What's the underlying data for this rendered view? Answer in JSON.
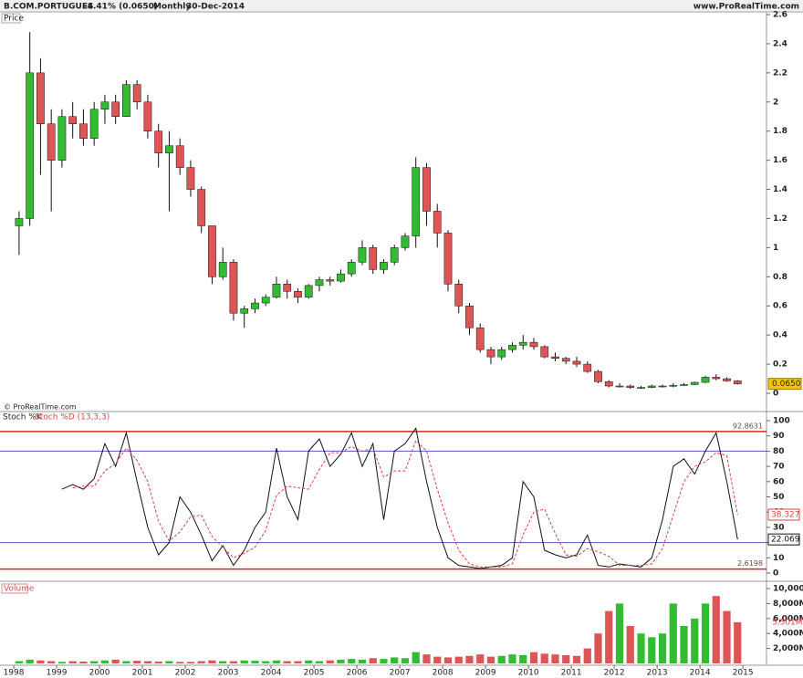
{
  "header": {
    "title": "B.COM.PORTUGUES",
    "change": "-4.41% (0.0650)",
    "period": "Monthly",
    "date": "30-Dec-2014",
    "site": "www.ProRealTime.com",
    "copyright": "© ProRealTime.com"
  },
  "chart_data": [
    {
      "type": "candlestick",
      "label": "Price",
      "x": [
        1998.125,
        1998.375,
        1998.625,
        1998.875,
        1999.125,
        1999.375,
        1999.625,
        1999.875,
        2000.125,
        2000.375,
        2000.625,
        2000.875,
        2001.125,
        2001.375,
        2001.625,
        2001.875,
        2002.125,
        2002.375,
        2002.625,
        2002.875,
        2003.125,
        2003.375,
        2003.625,
        2003.875,
        2004.125,
        2004.375,
        2004.625,
        2004.875,
        2005.125,
        2005.375,
        2005.625,
        2005.875,
        2006.125,
        2006.375,
        2006.625,
        2006.875,
        2007.125,
        2007.375,
        2007.625,
        2007.875,
        2008.125,
        2008.375,
        2008.625,
        2008.875,
        2009.125,
        2009.375,
        2009.625,
        2009.875,
        2010.125,
        2010.375,
        2010.625,
        2010.875,
        2011.125,
        2011.375,
        2011.625,
        2011.875,
        2012.125,
        2012.375,
        2012.625,
        2012.875,
        2013.125,
        2013.375,
        2013.625,
        2013.875,
        2014.125,
        2014.375,
        2014.625,
        2014.875
      ],
      "open": [
        1.15,
        1.2,
        2.2,
        1.85,
        1.6,
        1.9,
        1.85,
        1.75,
        1.95,
        2.0,
        1.9,
        2.12,
        2.0,
        1.8,
        1.65,
        1.7,
        1.55,
        1.4,
        1.15,
        0.8,
        0.9,
        0.55,
        0.58,
        0.62,
        0.66,
        0.75,
        0.7,
        0.66,
        0.74,
        0.78,
        0.77,
        0.82,
        0.9,
        1.0,
        0.85,
        0.9,
        1.0,
        1.08,
        1.55,
        1.25,
        1.1,
        0.75,
        0.6,
        0.45,
        0.3,
        0.25,
        0.3,
        0.33,
        0.35,
        0.32,
        0.25,
        0.24,
        0.22,
        0.2,
        0.15,
        0.08,
        0.05,
        0.05,
        0.04,
        0.04,
        0.05,
        0.05,
        0.055,
        0.06,
        0.075,
        0.11,
        0.1,
        0.085
      ],
      "high": [
        1.25,
        2.48,
        2.3,
        1.95,
        1.95,
        2.0,
        1.95,
        2.0,
        2.05,
        2.05,
        2.15,
        2.15,
        2.05,
        1.85,
        1.8,
        1.75,
        1.6,
        1.42,
        1.15,
        1.0,
        0.92,
        0.6,
        0.65,
        0.68,
        0.8,
        0.78,
        0.72,
        0.75,
        0.8,
        0.8,
        0.85,
        0.92,
        1.05,
        1.02,
        0.92,
        1.02,
        1.1,
        1.62,
        1.58,
        1.3,
        1.12,
        0.78,
        0.62,
        0.48,
        0.32,
        0.32,
        0.35,
        0.4,
        0.38,
        0.33,
        0.28,
        0.25,
        0.25,
        0.22,
        0.16,
        0.09,
        0.07,
        0.06,
        0.05,
        0.06,
        0.06,
        0.07,
        0.07,
        0.08,
        0.12,
        0.13,
        0.11,
        0.09
      ],
      "low": [
        0.95,
        1.15,
        1.5,
        1.25,
        1.55,
        1.75,
        1.7,
        1.7,
        1.85,
        1.85,
        1.9,
        1.95,
        1.75,
        1.55,
        1.25,
        1.5,
        1.35,
        1.1,
        0.75,
        0.78,
        0.5,
        0.45,
        0.55,
        0.6,
        0.65,
        0.65,
        0.62,
        0.65,
        0.7,
        0.74,
        0.76,
        0.8,
        0.88,
        0.82,
        0.82,
        0.88,
        0.98,
        1.0,
        1.15,
        1.0,
        0.7,
        0.55,
        0.4,
        0.28,
        0.2,
        0.23,
        0.28,
        0.3,
        0.3,
        0.24,
        0.22,
        0.2,
        0.18,
        0.14,
        0.07,
        0.04,
        0.04,
        0.03,
        0.03,
        0.035,
        0.04,
        0.04,
        0.05,
        0.055,
        0.07,
        0.09,
        0.08,
        0.06
      ],
      "close": [
        1.2,
        2.2,
        1.85,
        1.6,
        1.9,
        1.85,
        1.75,
        1.95,
        2.0,
        1.9,
        2.12,
        2.0,
        1.8,
        1.65,
        1.7,
        1.55,
        1.4,
        1.15,
        0.8,
        0.9,
        0.55,
        0.58,
        0.62,
        0.66,
        0.75,
        0.7,
        0.66,
        0.74,
        0.78,
        0.77,
        0.82,
        0.9,
        1.0,
        0.85,
        0.9,
        1.0,
        1.08,
        1.55,
        1.25,
        1.1,
        0.75,
        0.6,
        0.45,
        0.3,
        0.25,
        0.3,
        0.33,
        0.35,
        0.32,
        0.25,
        0.24,
        0.22,
        0.2,
        0.15,
        0.08,
        0.05,
        0.05,
        0.04,
        0.04,
        0.05,
        0.05,
        0.055,
        0.06,
        0.075,
        0.11,
        0.1,
        0.085,
        0.065
      ],
      "up_color": "#33bb33",
      "down_color": "#dd5555",
      "xlim": [
        1997.68,
        2015.55
      ],
      "xticks": [
        1998,
        1999,
        2000,
        2001,
        2002,
        2003,
        2004,
        2005,
        2006,
        2007,
        2008,
        2009,
        2010,
        2011,
        2012,
        2013,
        2014,
        2015
      ],
      "ylim": [
        0,
        2.6
      ],
      "yticks": [
        0,
        0.2,
        0.4,
        0.6,
        0.8,
        1,
        1.2,
        1.4,
        1.6,
        1.8,
        2,
        2.2,
        2.4,
        2.6
      ],
      "last_value": {
        "value": 0.065,
        "label": "0.0650"
      }
    },
    {
      "type": "line",
      "ylim": [
        0,
        100
      ],
      "yticks": [
        0,
        10,
        20,
        30,
        40,
        50,
        60,
        70,
        80,
        90,
        100
      ],
      "x": [
        1998.125,
        1998.375,
        1998.625,
        1998.875,
        1999.125,
        1999.375,
        1999.625,
        1999.875,
        2000.125,
        2000.375,
        2000.625,
        2000.875,
        2001.125,
        2001.375,
        2001.625,
        2001.875,
        2002.125,
        2002.375,
        2002.625,
        2002.875,
        2003.125,
        2003.375,
        2003.625,
        2003.875,
        2004.125,
        2004.375,
        2004.625,
        2004.875,
        2005.125,
        2005.375,
        2005.625,
        2005.875,
        2006.125,
        2006.375,
        2006.625,
        2006.875,
        2007.125,
        2007.375,
        2007.625,
        2007.875,
        2008.125,
        2008.375,
        2008.625,
        2008.875,
        2009.125,
        2009.375,
        2009.625,
        2009.875,
        2010.125,
        2010.375,
        2010.625,
        2010.875,
        2011.125,
        2011.375,
        2011.625,
        2011.875,
        2012.125,
        2012.375,
        2012.625,
        2012.875,
        2013.125,
        2013.375,
        2013.625,
        2013.875,
        2014.125,
        2014.375,
        2014.625,
        2014.875
      ],
      "series": [
        {
          "name": "Stoch %K",
          "color": "#111111",
          "values": [
            null,
            null,
            null,
            null,
            55,
            58,
            55,
            62,
            85,
            70,
            92,
            60,
            30,
            12,
            20,
            50,
            40,
            25,
            8,
            18,
            5,
            15,
            30,
            40,
            82,
            50,
            35,
            80,
            88,
            70,
            78,
            92,
            70,
            85,
            35,
            80,
            85,
            95,
            60,
            30,
            10,
            5,
            4,
            3,
            4,
            5,
            10,
            60,
            50,
            15,
            12,
            10,
            12,
            25,
            5,
            4,
            6,
            5,
            4,
            10,
            35,
            70,
            75,
            65,
            80,
            92,
            60,
            22.069
          ]
        },
        {
          "name": "Stoch %D (13,3,3)",
          "color": "#dd4444",
          "values": [
            null,
            null,
            null,
            null,
            null,
            56,
            57,
            57,
            67,
            72,
            82,
            74,
            60,
            34,
            21,
            27,
            37,
            38,
            24,
            17,
            10,
            13,
            17,
            28,
            51,
            57,
            56,
            55,
            68,
            79,
            79,
            83,
            80,
            82,
            63,
            67,
            67,
            87,
            80,
            55,
            33,
            15,
            6,
            4,
            4,
            4,
            6,
            25,
            40,
            42,
            26,
            12,
            11,
            16,
            14,
            11,
            5,
            5,
            5,
            6,
            16,
            38,
            60,
            70,
            73,
            79,
            77,
            38.327
          ]
        }
      ],
      "bounds": [
        92.8631,
        2.6198
      ],
      "bounds_color": "#dd2222",
      "levels": [
        80,
        20
      ],
      "levels_color": "#5555cc"
    },
    {
      "type": "bar",
      "label": "Volume",
      "x": [
        1998.125,
        1998.375,
        1998.625,
        1998.875,
        1999.125,
        1999.375,
        1999.625,
        1999.875,
        2000.125,
        2000.375,
        2000.625,
        2000.875,
        2001.125,
        2001.375,
        2001.625,
        2001.875,
        2002.125,
        2002.375,
        2002.625,
        2002.875,
        2003.125,
        2003.375,
        2003.625,
        2003.875,
        2004.125,
        2004.375,
        2004.625,
        2004.875,
        2005.125,
        2005.375,
        2005.625,
        2005.875,
        2006.125,
        2006.375,
        2006.625,
        2006.875,
        2007.125,
        2007.375,
        2007.625,
        2007.875,
        2008.125,
        2008.375,
        2008.625,
        2008.875,
        2009.125,
        2009.375,
        2009.625,
        2009.875,
        2010.125,
        2010.375,
        2010.625,
        2010.875,
        2011.125,
        2011.375,
        2011.625,
        2011.875,
        2012.125,
        2012.375,
        2012.625,
        2012.875,
        2013.125,
        2013.375,
        2013.625,
        2013.875,
        2014.125,
        2014.375,
        2014.625,
        2014.875
      ],
      "values": [
        300,
        500,
        400,
        300,
        200,
        300,
        250,
        300,
        400,
        500,
        300,
        350,
        300,
        250,
        300,
        200,
        200,
        300,
        400,
        300,
        300,
        400,
        350,
        300,
        400,
        300,
        300,
        400,
        300,
        400,
        500,
        600,
        500,
        700,
        600,
        800,
        700,
        1500,
        1200,
        900,
        800,
        900,
        1000,
        1200,
        900,
        1000,
        1200,
        1100,
        1500,
        1300,
        1200,
        1100,
        1000,
        2000,
        4000,
        7000,
        8000,
        5000,
        4000,
        3500,
        4000,
        8000,
        5000,
        6000,
        8000,
        9000,
        7000,
        5501
      ],
      "ylim": [
        0,
        10000
      ],
      "yticks": [
        {
          "value": 2000,
          "label": "2,000M"
        },
        {
          "value": 4000,
          "label": "4,000M"
        },
        {
          "value": 6000,
          "label": "6,000M"
        },
        {
          "value": 8000,
          "label": "8,000M"
        },
        {
          "value": 10000,
          "label": "10,000M"
        }
      ],
      "last_value": {
        "value": 5501,
        "label": "5.501M"
      }
    }
  ]
}
